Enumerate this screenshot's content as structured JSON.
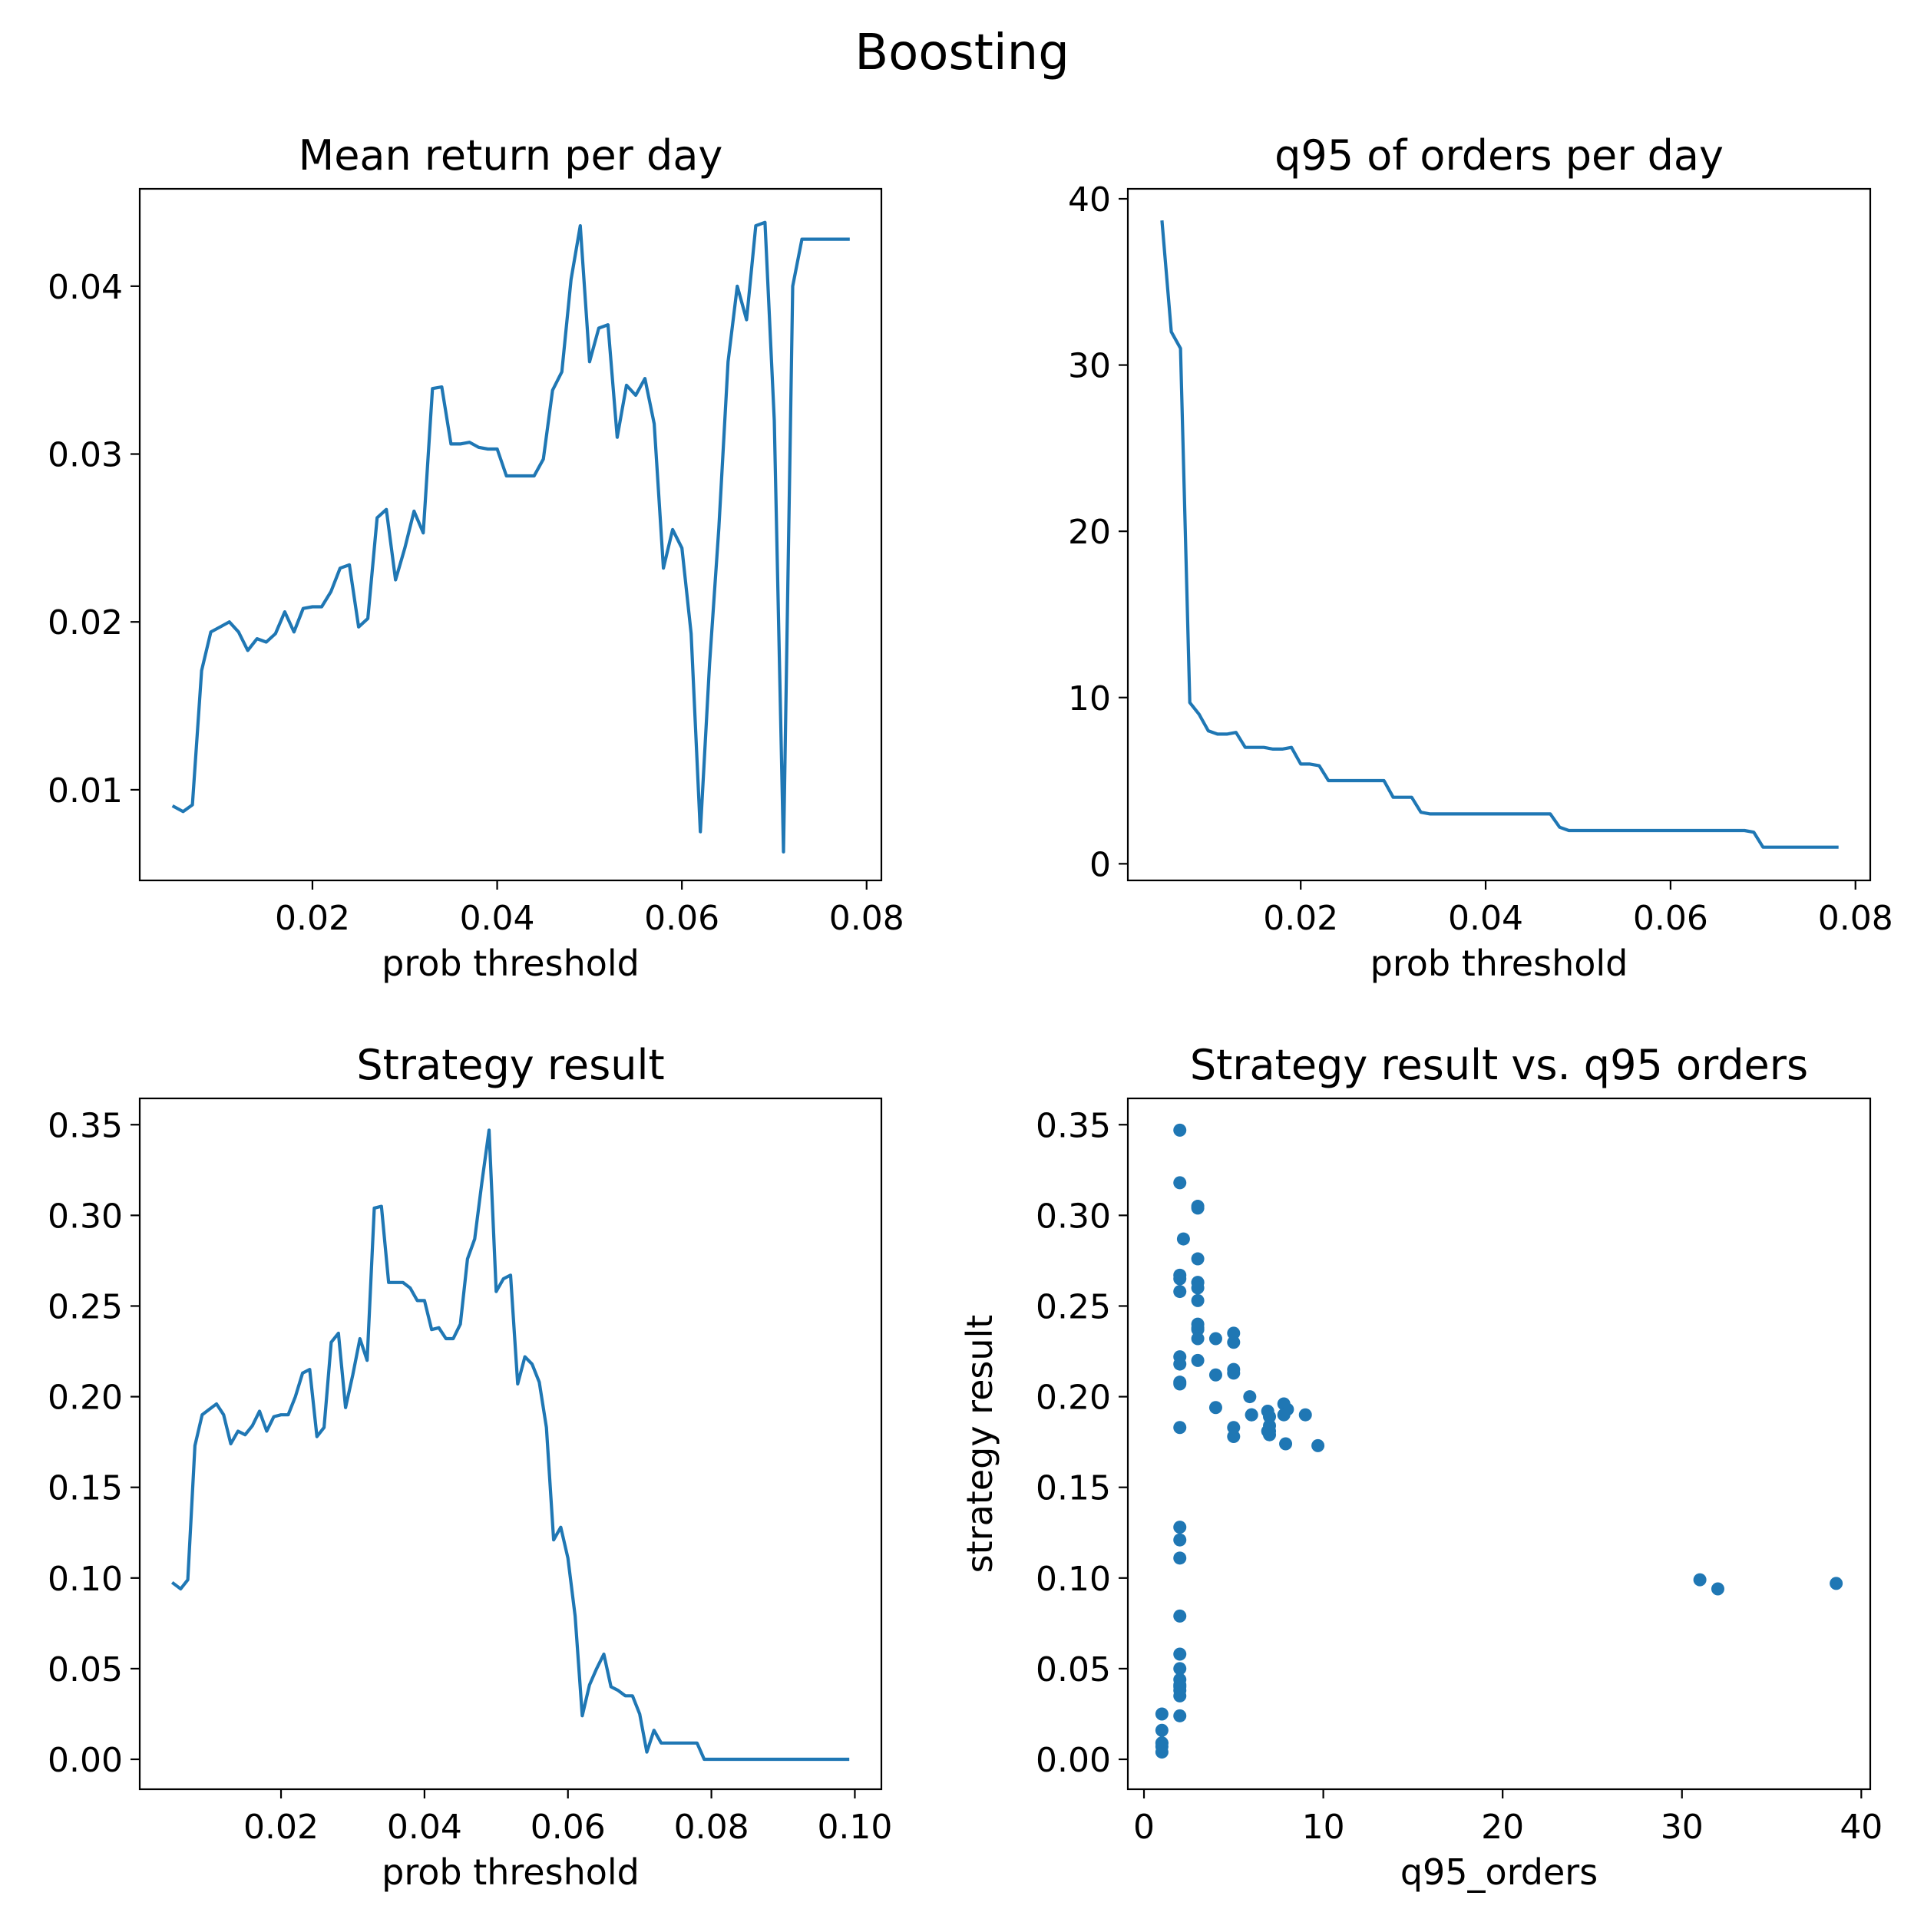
{
  "figure": {
    "suptitle": "Boosting"
  },
  "chart_data": [
    {
      "type": "line",
      "title": "Mean return per day",
      "xlabel": "prob threshold",
      "ylabel": "",
      "xlim": [
        0.0013,
        0.0816
      ],
      "ylim": [
        0.0046,
        0.0458
      ],
      "xticks": [
        0.02,
        0.04,
        0.06,
        0.08
      ],
      "xtick_labels": [
        "0.02",
        "0.04",
        "0.06",
        "0.08"
      ],
      "yticks": [
        0.01,
        0.02,
        0.03,
        0.04
      ],
      "ytick_labels": [
        "0.01",
        "0.02",
        "0.03",
        "0.04"
      ],
      "color": "#1f77b4",
      "series": [
        {
          "x": [
            0.005,
            0.006,
            0.007,
            0.008,
            0.009,
            0.01,
            0.011,
            0.012,
            0.013,
            0.014,
            0.015,
            0.016,
            0.017,
            0.018,
            0.019,
            0.02,
            0.021,
            0.022,
            0.023,
            0.024,
            0.025,
            0.026,
            0.027,
            0.028,
            0.029,
            0.03,
            0.031,
            0.032,
            0.033,
            0.034,
            0.035,
            0.036,
            0.037,
            0.038,
            0.039,
            0.04,
            0.041,
            0.042,
            0.043,
            0.044,
            0.045,
            0.046,
            0.047,
            0.048,
            0.049,
            0.05,
            0.051,
            0.052,
            0.053,
            0.054,
            0.055,
            0.056,
            0.057,
            0.058,
            0.059,
            0.06,
            0.061,
            0.062,
            0.063,
            0.064,
            0.065,
            0.066,
            0.067,
            0.068,
            0.069,
            0.07,
            0.071,
            0.072,
            0.073,
            0.074,
            0.075,
            0.076,
            0.077,
            0.078
          ],
          "y": [
            0.009,
            0.0087,
            0.0091,
            0.0171,
            0.0194,
            0.0197,
            0.02,
            0.0194,
            0.0183,
            0.019,
            0.0188,
            0.0193,
            0.0206,
            0.0194,
            0.0208,
            0.0209,
            0.0209,
            0.0218,
            0.0232,
            0.0234,
            0.0197,
            0.0202,
            0.0262,
            0.0267,
            0.0225,
            0.0244,
            0.0266,
            0.0253,
            0.0339,
            0.034,
            0.0306,
            0.0306,
            0.0307,
            0.0304,
            0.0303,
            0.0303,
            0.0287,
            0.0287,
            0.0287,
            0.0287,
            0.0297,
            0.0338,
            0.0349,
            0.0404,
            0.0436,
            0.0355,
            0.0375,
            0.0377,
            0.031,
            0.0341,
            0.0335,
            0.0345,
            0.0318,
            0.0232,
            0.0255,
            0.0244,
            0.0193,
            0.0075,
            0.0175,
            0.0256,
            0.0355,
            0.04,
            0.038,
            0.0436,
            0.0438,
            0.032,
            0.0063,
            0.04,
            0.0428,
            0.0428,
            0.0428,
            0.0428,
            0.0428,
            0.0428
          ]
        }
      ]
    },
    {
      "type": "line",
      "title": "q95 of orders per day",
      "xlabel": "prob threshold",
      "ylabel": "",
      "xlim": [
        0.0013,
        0.0816
      ],
      "ylim": [
        -1.0,
        40.6
      ],
      "xticks": [
        0.02,
        0.04,
        0.06,
        0.08
      ],
      "xtick_labels": [
        "0.02",
        "0.04",
        "0.06",
        "0.08"
      ],
      "yticks": [
        0,
        10,
        20,
        30,
        40
      ],
      "ytick_labels": [
        "0",
        "10",
        "20",
        "30",
        "40"
      ],
      "color": "#1f77b4",
      "series": [
        {
          "x": [
            0.005,
            0.006,
            0.007,
            0.008,
            0.009,
            0.01,
            0.011,
            0.012,
            0.013,
            0.014,
            0.015,
            0.016,
            0.017,
            0.018,
            0.019,
            0.02,
            0.021,
            0.022,
            0.023,
            0.024,
            0.025,
            0.026,
            0.027,
            0.028,
            0.029,
            0.03,
            0.031,
            0.032,
            0.033,
            0.034,
            0.035,
            0.036,
            0.037,
            0.038,
            0.039,
            0.04,
            0.041,
            0.042,
            0.043,
            0.044,
            0.045,
            0.046,
            0.047,
            0.048,
            0.049,
            0.05,
            0.051,
            0.052,
            0.053,
            0.054,
            0.055,
            0.056,
            0.057,
            0.058,
            0.059,
            0.06,
            0.061,
            0.062,
            0.063,
            0.064,
            0.065,
            0.066,
            0.067,
            0.068,
            0.069,
            0.07,
            0.071,
            0.072,
            0.073,
            0.074,
            0.075,
            0.076,
            0.077,
            0.078
          ],
          "y": [
            38.6,
            32.0,
            31.0,
            9.7,
            9.0,
            8.0,
            7.8,
            7.8,
            7.9,
            7.0,
            7.0,
            7.0,
            6.9,
            6.9,
            7.0,
            6.0,
            6.0,
            5.9,
            5.0,
            5.0,
            5.0,
            5.0,
            5.0,
            5.0,
            5.0,
            4.0,
            4.0,
            4.0,
            3.1,
            3.0,
            3.0,
            3.0,
            3.0,
            3.0,
            3.0,
            3.0,
            3.0,
            3.0,
            3.0,
            3.0,
            3.0,
            3.0,
            3.0,
            2.2,
            2.0,
            2.0,
            2.0,
            2.0,
            2.0,
            2.0,
            2.0,
            2.0,
            2.0,
            2.0,
            2.0,
            2.0,
            2.0,
            2.0,
            2.0,
            2.0,
            2.0,
            2.0,
            2.0,
            2.0,
            1.9,
            1.0,
            1.0,
            1.0,
            1.0,
            1.0,
            1.0,
            1.0,
            1.0,
            1.0
          ]
        }
      ]
    },
    {
      "type": "line",
      "title": "Strategy result",
      "xlabel": "prob threshold",
      "ylabel": "",
      "xlim": [
        0.0003,
        0.1037
      ],
      "ylim": [
        -0.0165,
        0.3645
      ],
      "xticks": [
        0.02,
        0.04,
        0.06,
        0.08,
        0.1
      ],
      "xtick_labels": [
        "0.02",
        "0.04",
        "0.06",
        "0.08",
        "0.10"
      ],
      "yticks": [
        0.0,
        0.05,
        0.1,
        0.15,
        0.2,
        0.25,
        0.3,
        0.35
      ],
      "ytick_labels": [
        "0.00",
        "0.05",
        "0.10",
        "0.15",
        "0.20",
        "0.25",
        "0.30",
        "0.35"
      ],
      "color": "#1f77b4",
      "series": [
        {
          "x": [
            0.005,
            0.006,
            0.007,
            0.008,
            0.009,
            0.01,
            0.011,
            0.012,
            0.013,
            0.014,
            0.015,
            0.016,
            0.017,
            0.018,
            0.019,
            0.02,
            0.021,
            0.022,
            0.023,
            0.024,
            0.025,
            0.026,
            0.027,
            0.028,
            0.029,
            0.03,
            0.031,
            0.032,
            0.033,
            0.034,
            0.035,
            0.036,
            0.037,
            0.038,
            0.039,
            0.04,
            0.041,
            0.042,
            0.043,
            0.044,
            0.045,
            0.046,
            0.047,
            0.048,
            0.049,
            0.05,
            0.051,
            0.052,
            0.053,
            0.054,
            0.055,
            0.056,
            0.057,
            0.058,
            0.059,
            0.06,
            0.061,
            0.062,
            0.063,
            0.064,
            0.065,
            0.066,
            0.067,
            0.068,
            0.069,
            0.07,
            0.071,
            0.072,
            0.073,
            0.074,
            0.075,
            0.076,
            0.077,
            0.078,
            0.079,
            0.08,
            0.085,
            0.09,
            0.095,
            0.099
          ],
          "y": [
            0.097,
            0.094,
            0.099,
            0.173,
            0.19,
            0.193,
            0.196,
            0.19,
            0.174,
            0.181,
            0.179,
            0.184,
            0.192,
            0.181,
            0.189,
            0.19,
            0.19,
            0.2,
            0.213,
            0.215,
            0.178,
            0.183,
            0.23,
            0.235,
            0.194,
            0.212,
            0.232,
            0.22,
            0.304,
            0.305,
            0.263,
            0.263,
            0.263,
            0.26,
            0.253,
            0.253,
            0.237,
            0.238,
            0.232,
            0.232,
            0.24,
            0.276,
            0.287,
            0.318,
            0.347,
            0.258,
            0.265,
            0.267,
            0.207,
            0.222,
            0.218,
            0.208,
            0.183,
            0.121,
            0.128,
            0.111,
            0.079,
            0.024,
            0.041,
            0.05,
            0.058,
            0.04,
            0.038,
            0.035,
            0.035,
            0.025,
            0.004,
            0.016,
            0.009,
            0.009,
            0.009,
            0.009,
            0.009,
            0.009,
            0.0,
            0.0,
            0.0,
            0.0,
            0.0,
            0.0
          ]
        }
      ]
    },
    {
      "type": "scatter",
      "title": "Strategy result vs. q95 orders",
      "xlabel": "q95_orders",
      "ylabel": "strategy result",
      "xlim": [
        -0.9,
        40.5
      ],
      "ylim": [
        -0.0165,
        0.3645
      ],
      "xticks": [
        0,
        10,
        20,
        30,
        40
      ],
      "xtick_labels": [
        "0",
        "10",
        "20",
        "30",
        "40"
      ],
      "yticks": [
        0.0,
        0.05,
        0.1,
        0.15,
        0.2,
        0.25,
        0.3,
        0.35
      ],
      "ytick_labels": [
        "0.00",
        "0.05",
        "0.10",
        "0.15",
        "0.20",
        "0.25",
        "0.30",
        "0.35"
      ],
      "color": "#1f77b4",
      "points": [
        [
          38.6,
          0.097
        ],
        [
          32.0,
          0.094
        ],
        [
          31.0,
          0.099
        ],
        [
          9.7,
          0.173
        ],
        [
          9.0,
          0.19
        ],
        [
          8.0,
          0.193
        ],
        [
          7.8,
          0.196
        ],
        [
          7.8,
          0.19
        ],
        [
          7.9,
          0.174
        ],
        [
          7.0,
          0.181
        ],
        [
          7.0,
          0.179
        ],
        [
          7.0,
          0.184
        ],
        [
          6.9,
          0.192
        ],
        [
          6.9,
          0.181
        ],
        [
          7.0,
          0.189
        ],
        [
          6.0,
          0.19
        ],
        [
          6.0,
          0.19
        ],
        [
          5.9,
          0.2
        ],
        [
          5.0,
          0.213
        ],
        [
          5.0,
          0.215
        ],
        [
          5.0,
          0.178
        ],
        [
          5.0,
          0.183
        ],
        [
          5.0,
          0.23
        ],
        [
          5.0,
          0.235
        ],
        [
          4.0,
          0.194
        ],
        [
          4.0,
          0.212
        ],
        [
          4.0,
          0.232
        ],
        [
          3.0,
          0.22
        ],
        [
          3.0,
          0.304
        ],
        [
          3.0,
          0.305
        ],
        [
          3.0,
          0.263
        ],
        [
          3.0,
          0.263
        ],
        [
          3.0,
          0.26
        ],
        [
          3.0,
          0.253
        ],
        [
          3.0,
          0.237
        ],
        [
          3.0,
          0.238
        ],
        [
          3.0,
          0.232
        ],
        [
          3.0,
          0.24
        ],
        [
          3.0,
          0.276
        ],
        [
          2.2,
          0.287
        ],
        [
          2.0,
          0.318
        ],
        [
          2.0,
          0.347
        ],
        [
          2.0,
          0.258
        ],
        [
          2.0,
          0.265
        ],
        [
          2.0,
          0.267
        ],
        [
          2.0,
          0.207
        ],
        [
          2.0,
          0.222
        ],
        [
          2.0,
          0.218
        ],
        [
          2.0,
          0.208
        ],
        [
          2.0,
          0.183
        ],
        [
          2.0,
          0.121
        ],
        [
          2.0,
          0.128
        ],
        [
          2.0,
          0.111
        ],
        [
          2.0,
          0.079
        ],
        [
          2.0,
          0.024
        ],
        [
          2.0,
          0.041
        ],
        [
          2.0,
          0.05
        ],
        [
          2.0,
          0.058
        ],
        [
          2.0,
          0.04
        ],
        [
          2.0,
          0.038
        ],
        [
          2.0,
          0.035
        ],
        [
          2.0,
          0.044
        ],
        [
          1.0,
          0.025
        ],
        [
          1.0,
          0.004
        ],
        [
          1.0,
          0.016
        ],
        [
          1.0,
          0.009
        ],
        [
          1.0,
          0.009
        ],
        [
          1.0,
          0.007
        ]
      ]
    }
  ]
}
